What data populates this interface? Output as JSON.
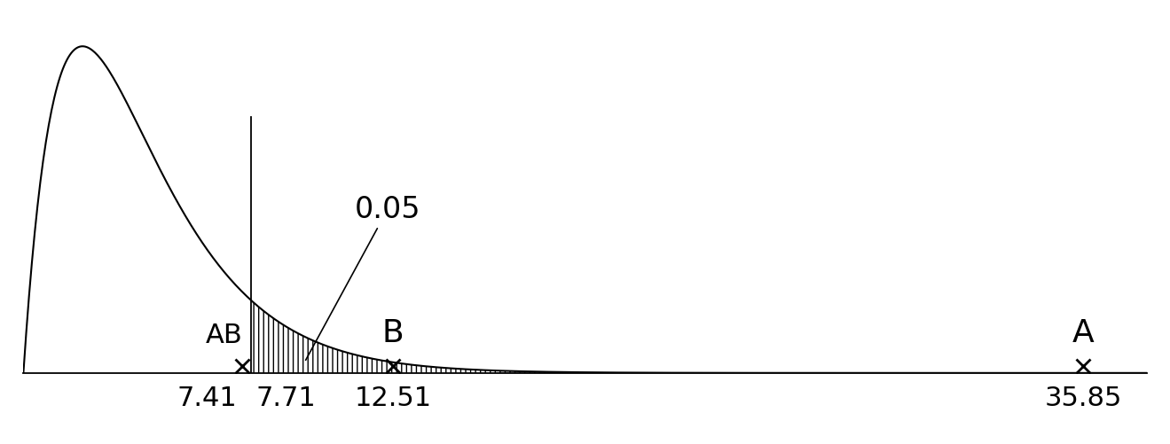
{
  "chart_data": {
    "type": "distribution",
    "xlim": [
      0,
      38
    ],
    "ylim": [
      0,
      0.2
    ],
    "tick_labels": false,
    "critical_value": 7.71,
    "tail_area": 0.05,
    "points": [
      {
        "name": "AB",
        "value": 7.41
      },
      {
        "name": "B",
        "value": 12.51
      },
      {
        "name": "A",
        "value": 35.85
      }
    ],
    "marker": "x",
    "color": "#000000"
  }
}
